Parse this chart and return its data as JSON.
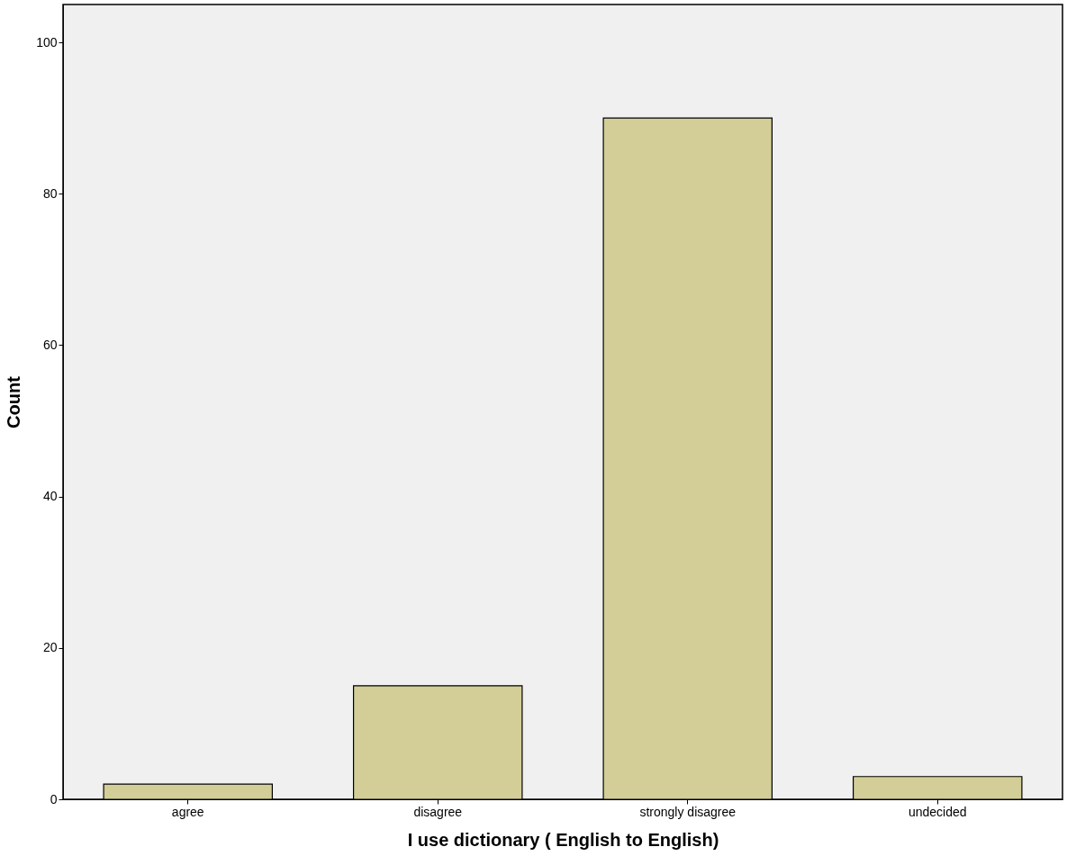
{
  "chart_data": {
    "type": "bar",
    "xlabel": "I use dictionary ( English to English)",
    "ylabel": "Count",
    "categories": [
      "agree",
      "disagree",
      "strongly disagree",
      "undecided"
    ],
    "values": [
      2,
      15,
      90,
      3
    ],
    "color": "#d3ce97",
    "ylim": [
      0,
      105
    ],
    "yticks": [
      0,
      20,
      40,
      60,
      80,
      100
    ],
    "grid": false
  }
}
